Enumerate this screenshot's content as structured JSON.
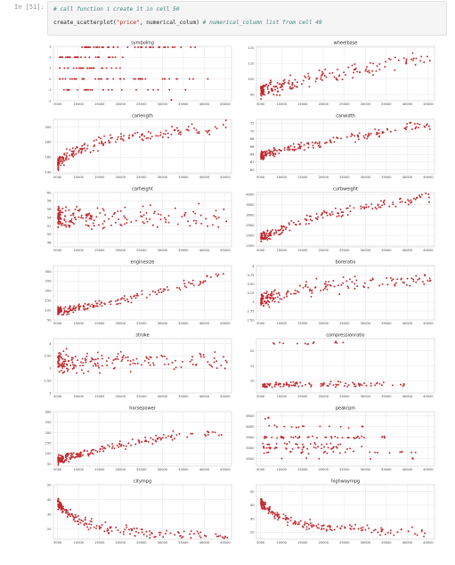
{
  "cell": {
    "prompt": "In [51]:",
    "code_comment": "# call function i create it in cell 50",
    "code_fn": "create_scatterplot(",
    "code_arg": "\"price\"",
    "code_mid": ", numerical_colum) ",
    "code_tail_comment": "# numerical_column list from cell 49"
  },
  "colors": {
    "point": "#c1272d",
    "grid": "#e6e6e6"
  },
  "chart_data": [
    {
      "type": "scatter",
      "title": "symboling",
      "x_ticks": [
        5000,
        10000,
        15000,
        20000,
        25000,
        30000,
        35000,
        40000,
        45000
      ],
      "y_ticks": [
        -2,
        -1,
        0,
        1,
        2,
        3
      ],
      "ylim": [
        -2,
        3
      ],
      "groups": [
        {
          "y": 3,
          "xrange": [
            10000,
            38000
          ],
          "n": 40
        },
        {
          "y": 2,
          "xrange": [
            5500,
            22000
          ],
          "n": 30
        },
        {
          "y": 1,
          "xrange": [
            5500,
            20000
          ],
          "n": 25
        },
        {
          "y": 0,
          "xrange": [
            5500,
            41000
          ],
          "n": 45
        },
        {
          "y": -1,
          "xrange": [
            6500,
            37000
          ],
          "n": 25
        },
        {
          "y": -2,
          "xrange": [
            31000,
            33000
          ],
          "n": 2
        }
      ]
    },
    {
      "type": "scatter",
      "title": "wheelbase",
      "x_ticks": [
        5000,
        10000,
        15000,
        20000,
        25000,
        30000,
        35000,
        40000,
        45000
      ],
      "y_ticks": [
        90,
        100,
        110,
        120
      ],
      "ylim": [
        86,
        121
      ],
      "trend": {
        "x": [
          5000,
          10000,
          15000,
          20000,
          30000,
          40000,
          45000
        ],
        "y": [
          93,
          95,
          98,
          102,
          106,
          112,
          113
        ],
        "spread": 4
      }
    },
    {
      "type": "scatter",
      "title": "carlength",
      "x_ticks": [
        5000,
        10000,
        15000,
        20000,
        25000,
        30000,
        35000,
        40000,
        45000
      ],
      "y_ticks": [
        140,
        160,
        180,
        200
      ],
      "ylim": [
        138,
        210
      ],
      "trend": {
        "x": [
          5000,
          8000,
          12000,
          17000,
          25000,
          35000,
          45000
        ],
        "y": [
          150,
          165,
          174,
          182,
          190,
          195,
          200
        ],
        "spread": 7
      }
    },
    {
      "type": "scatter",
      "title": "carwidth",
      "x_ticks": [
        5000,
        10000,
        15000,
        20000,
        25000,
        30000,
        35000,
        40000,
        45000
      ],
      "y_ticks": [
        60,
        62,
        64,
        66,
        68,
        70,
        72
      ],
      "ylim": [
        59,
        73
      ],
      "trend": {
        "x": [
          5000,
          10000,
          15000,
          20000,
          30000,
          40000,
          45000
        ],
        "y": [
          63.5,
          65,
          66,
          67,
          69,
          71,
          71.5
        ],
        "spread": 1
      }
    },
    {
      "type": "scatter",
      "title": "carheight",
      "x_ticks": [
        5000,
        10000,
        15000,
        20000,
        25000,
        30000,
        35000,
        40000,
        45000
      ],
      "y_ticks": [
        48,
        50,
        52,
        54,
        56,
        58,
        60
      ],
      "ylim": [
        47,
        60
      ],
      "trend": {
        "x": [
          5000,
          45000
        ],
        "y": [
          53.8,
          54
        ],
        "spread": 2.4
      }
    },
    {
      "type": "scatter",
      "title": "curbweight",
      "x_ticks": [
        5000,
        10000,
        15000,
        20000,
        25000,
        30000,
        35000,
        40000,
        45000
      ],
      "y_ticks": [
        1500,
        2000,
        2500,
        3000,
        3500,
        4000
      ],
      "ylim": [
        1450,
        4100
      ],
      "trend": {
        "x": [
          5000,
          10000,
          15000,
          20000,
          30000,
          40000,
          45000
        ],
        "y": [
          1900,
          2300,
          2700,
          3000,
          3400,
          3700,
          3900
        ],
        "spread": 200
      }
    },
    {
      "type": "scatter",
      "title": "enginesize",
      "x_ticks": [
        5000,
        10000,
        15000,
        20000,
        25000,
        30000,
        35000,
        40000,
        45000
      ],
      "y_ticks": [
        50,
        100,
        150,
        200,
        250,
        300
      ],
      "ylim": [
        50,
        330
      ],
      "trend": {
        "x": [
          5000,
          10000,
          15000,
          20000,
          30000,
          40000,
          45000
        ],
        "y": [
          95,
          110,
          135,
          150,
          200,
          250,
          300
        ],
        "spread": 20
      }
    },
    {
      "type": "scatter",
      "title": "boreratio",
      "x_ticks": [
        5000,
        10000,
        15000,
        20000,
        25000,
        30000,
        35000,
        40000,
        45000
      ],
      "y_ticks": [
        2.5,
        2.75,
        3.0,
        3.25,
        3.5,
        3.75,
        4.0
      ],
      "ylim": [
        2.5,
        4.02
      ],
      "trend": {
        "x": [
          5000,
          10000,
          15000,
          20000,
          30000,
          40000,
          45000
        ],
        "y": [
          3.05,
          3.2,
          3.35,
          3.45,
          3.55,
          3.6,
          3.65
        ],
        "spread": 0.18
      }
    },
    {
      "type": "scatter",
      "title": "stroke",
      "x_ticks": [
        5000,
        10000,
        15000,
        20000,
        25000,
        30000,
        35000,
        40000,
        45000
      ],
      "y_ticks": [
        2.0,
        2.5,
        3.0,
        3.5,
        4.0
      ],
      "ylim": [
        2.0,
        4.2
      ],
      "trend": {
        "x": [
          5000,
          45000
        ],
        "y": [
          3.25,
          3.3
        ],
        "spread": 0.35
      }
    },
    {
      "type": "scatter",
      "title": "compressionratio",
      "x_ticks": [
        5000,
        10000,
        15000,
        20000,
        25000,
        30000,
        35000,
        40000,
        45000
      ],
      "y_ticks": [
        10,
        15,
        20
      ],
      "ylim": [
        6,
        24
      ],
      "groups": [
        {
          "y": 8.8,
          "xrange": [
            5500,
            42000
          ],
          "n": 110,
          "jitter": 0.8
        },
        {
          "y": 22.5,
          "xrange": [
            8000,
            25000
          ],
          "n": 14,
          "jitter": 0.4
        }
      ]
    },
    {
      "type": "scatter",
      "title": "horsepower",
      "x_ticks": [
        5000,
        10000,
        15000,
        20000,
        25000,
        30000,
        35000,
        40000,
        45000
      ],
      "y_ticks": [
        50,
        100,
        150,
        200,
        250,
        300
      ],
      "ylim": [
        40,
        300
      ],
      "trend": {
        "x": [
          5000,
          10000,
          15000,
          20000,
          30000,
          40000,
          45000
        ],
        "y": [
          70,
          95,
          115,
          145,
          175,
          190,
          200
        ],
        "spread": 18
      }
    },
    {
      "type": "scatter",
      "title": "peakrpm",
      "x_ticks": [
        5000,
        10000,
        15000,
        20000,
        25000,
        30000,
        35000,
        40000,
        45000
      ],
      "y_ticks": [
        4500,
        5000,
        5500,
        6000,
        6500
      ],
      "ylim": [
        4150,
        6700
      ],
      "groups": [
        {
          "y": 5500,
          "xrange": [
            5500,
            36000
          ],
          "n": 45,
          "jitter": 60
        },
        {
          "y": 5000,
          "xrange": [
            5500,
            30000
          ],
          "n": 35,
          "jitter": 60
        },
        {
          "y": 5200,
          "xrange": [
            5500,
            25000
          ],
          "n": 20,
          "jitter": 60
        },
        {
          "y": 4800,
          "xrange": [
            5500,
            42000
          ],
          "n": 25,
          "jitter": 60
        },
        {
          "y": 6000,
          "xrange": [
            5500,
            30000
          ],
          "n": 15,
          "jitter": 60
        },
        {
          "y": 4500,
          "xrange": [
            10000,
            45000
          ],
          "n": 6,
          "jitter": 40
        },
        {
          "y": 6400,
          "xrange": [
            6000,
            15000
          ],
          "n": 3,
          "jitter": 40
        }
      ]
    },
    {
      "type": "scatter",
      "title": "citympg",
      "x_ticks": [
        5000,
        10000,
        15000,
        20000,
        25000,
        30000,
        35000,
        40000,
        45000
      ],
      "y_ticks": [
        20,
        30,
        40,
        50
      ],
      "ylim": [
        13,
        50
      ],
      "trend": {
        "x": [
          5000,
          7000,
          10000,
          15000,
          20000,
          30000,
          45000
        ],
        "y": [
          38,
          31,
          26,
          21,
          19,
          17,
          15
        ],
        "spread": 3
      }
    },
    {
      "type": "scatter",
      "title": "highwaympg",
      "x_ticks": [
        5000,
        10000,
        15000,
        20000,
        25000,
        30000,
        35000,
        40000,
        45000
      ],
      "y_ticks": [
        20,
        30,
        40,
        50
      ],
      "ylim": [
        15,
        55
      ],
      "trend": {
        "x": [
          5000,
          7000,
          10000,
          15000,
          20000,
          30000,
          45000
        ],
        "y": [
          42,
          36,
          31,
          26,
          24,
          22,
          19
        ],
        "spread": 3
      }
    }
  ]
}
